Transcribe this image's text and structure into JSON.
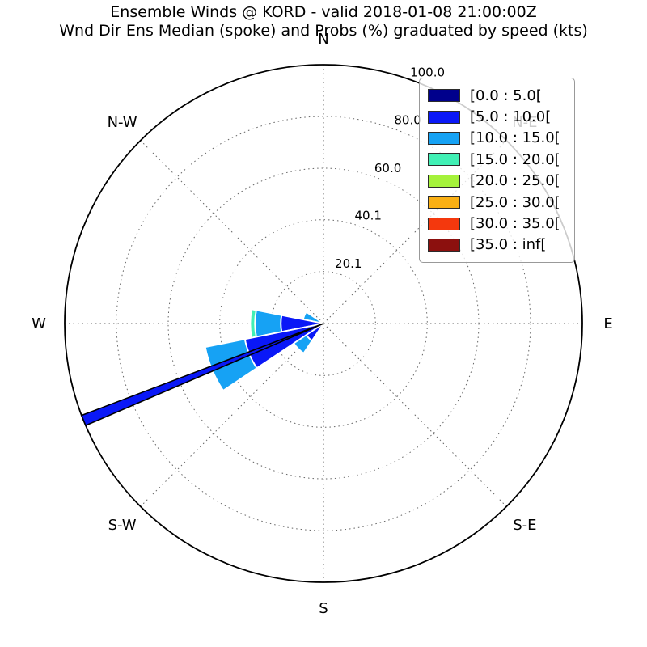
{
  "header": {
    "title": "Ensemble Winds @ KORD - valid 2018-01-08 21:00:00Z",
    "subtitle": "Wnd Dir Ens Median (spoke) and Probs (%) graduated by speed (kts)"
  },
  "legend": {
    "entries": [
      {
        "label": "[0.0 : 5.0[",
        "color": "#00008C"
      },
      {
        "label": "[5.0 : 10.0[",
        "color": "#0A18F7"
      },
      {
        "label": "[10.0 : 15.0[",
        "color": "#16A2F4"
      },
      {
        "label": "[15.0 : 20.0[",
        "color": "#41F0B5"
      },
      {
        "label": "[20.0 : 25.0[",
        "color": "#A5F23B"
      },
      {
        "label": "[25.0 : 30.0[",
        "color": "#FAB014"
      },
      {
        "label": "[30.0 : 35.0[",
        "color": "#F4380D"
      },
      {
        "label": "[35.0 : inf[",
        "color": "#8C100E"
      }
    ]
  },
  "chart_data": {
    "type": "windrose-bar",
    "title": "Ensemble Winds @ KORD - valid 2018-01-08 21:00:00Z",
    "subtitle": "Wnd Dir Ens Median (spoke) and Probs (%) graduated by speed (kts)",
    "radial_unit": "probability %",
    "speed_unit": "kts",
    "radial_max": 100.0,
    "radial_ticks": [
      20.1,
      40.1,
      60.0,
      80.0,
      100.0
    ],
    "tick_label_angle_deg": 22.5,
    "grid_on": true,
    "legend_position": "upper-right",
    "compass_labels": [
      {
        "label": "N",
        "deg": 0
      },
      {
        "label": "N-E",
        "deg": 45
      },
      {
        "label": "E",
        "deg": 90
      },
      {
        "label": "S-E",
        "deg": 135
      },
      {
        "label": "S",
        "deg": 180
      },
      {
        "label": "S-W",
        "deg": 225
      },
      {
        "label": "W",
        "deg": 270
      },
      {
        "label": "N-W",
        "deg": 315
      }
    ],
    "direction_bins": [
      {
        "direction": "WNW",
        "center_deg": 292.5,
        "width_deg": 22.5,
        "segments": [
          {
            "speed": "[10.0 : 15.0[",
            "from_pct": 0.0,
            "to_pct": 8.0
          }
        ]
      },
      {
        "direction": "W",
        "center_deg": 270.0,
        "width_deg": 22.5,
        "segments": [
          {
            "speed": "[5.0 : 10.0[",
            "from_pct": 0.0,
            "to_pct": 16.5
          },
          {
            "speed": "[10.0 : 15.0[",
            "from_pct": 16.5,
            "to_pct": 26.5
          },
          {
            "speed": "[15.0 : 20.0[",
            "from_pct": 26.5,
            "to_pct": 28.3
          }
        ]
      },
      {
        "direction": "WSW",
        "center_deg": 247.5,
        "width_deg": 22.5,
        "segments": [
          {
            "speed": "[5.0 : 10.0[",
            "from_pct": 0.0,
            "to_pct": 31.0
          },
          {
            "speed": "[10.0 : 15.0[",
            "from_pct": 31.0,
            "to_pct": 46.6
          }
        ]
      },
      {
        "direction": "SW",
        "center_deg": 225.0,
        "width_deg": 22.5,
        "segments": [
          {
            "speed": "[5.0 : 10.0[",
            "from_pct": 0.0,
            "to_pct": 8.0
          },
          {
            "speed": "[10.0 : 15.0[",
            "from_pct": 8.0,
            "to_pct": 13.8
          }
        ]
      }
    ],
    "median_spoke": {
      "direction_deg": 248.0,
      "length_pct": 100.0,
      "half_width_deg": 1.2,
      "fill_speed": "[5.0 : 10.0[",
      "edge_color": "#000000"
    },
    "style": {
      "grid_color": "#666666",
      "outer_circle_color": "#000000",
      "segment_edge_color": "#ffffff",
      "text_color": "#000000"
    }
  }
}
